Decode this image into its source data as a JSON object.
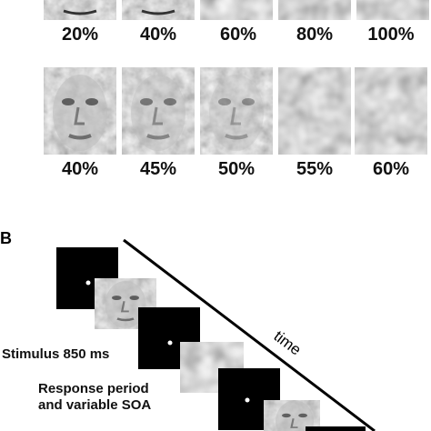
{
  "panel_a": {
    "row1_labels": [
      "20%",
      "40%",
      "60%",
      "80%",
      "100%"
    ],
    "row2_labels": [
      "40%",
      "45%",
      "50%",
      "55%",
      "60%"
    ]
  },
  "panel_b": {
    "letter": "B",
    "time_label": "time",
    "stimulus_label": "Stimulus 850 ms",
    "response_label": [
      "Response period",
      "and variable SOA"
    ]
  }
}
